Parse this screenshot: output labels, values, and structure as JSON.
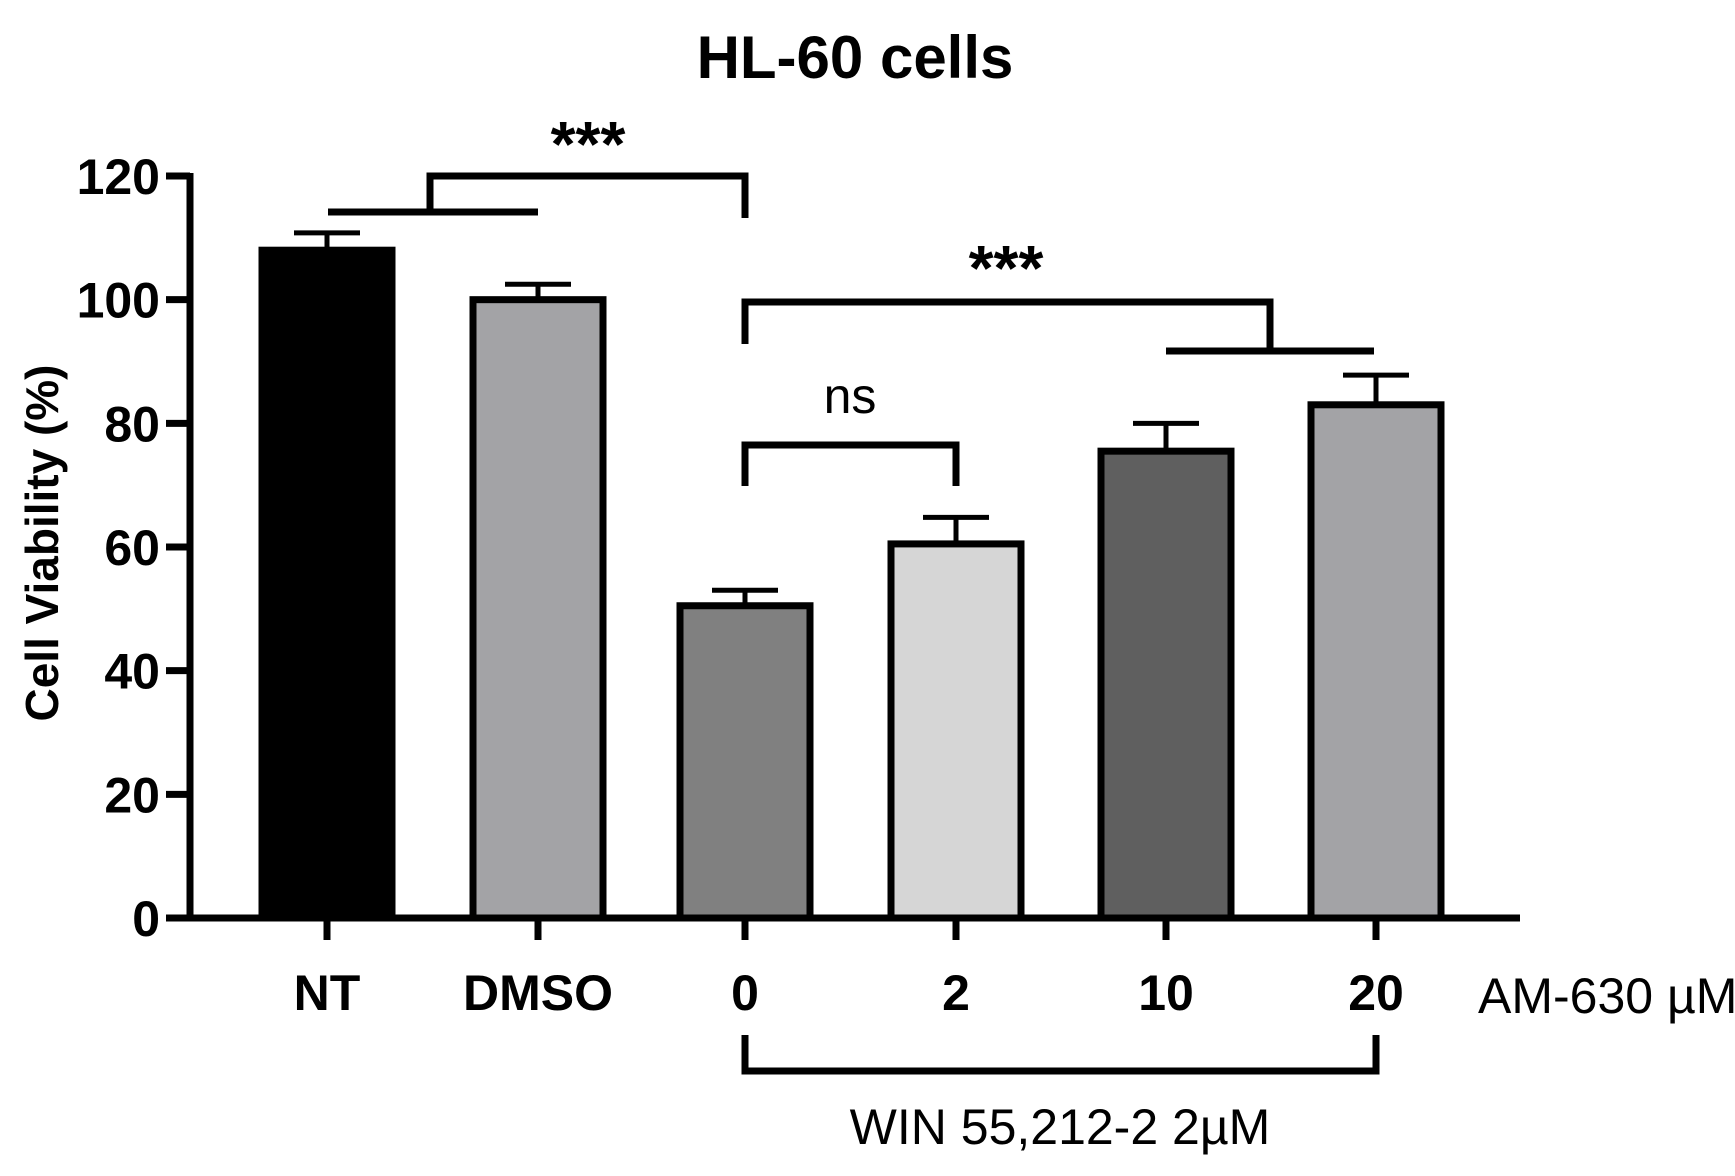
{
  "chart_data": {
    "type": "bar",
    "title": "HL-60 cells",
    "ylabel": "Cell Viability (%)",
    "xlabel": "",
    "ylim": [
      0,
      120
    ],
    "yticks": [
      0,
      20,
      40,
      60,
      80,
      100,
      120
    ],
    "categories": [
      "NT",
      "DMSO",
      "0",
      "2",
      "10",
      "20"
    ],
    "values": [
      108,
      100,
      50.5,
      60.5,
      75.5,
      83
    ],
    "errors": [
      2.8,
      2.5,
      2.5,
      4.3,
      4.5,
      4.8
    ],
    "colors": [
      "#000000",
      "#a3a3a6",
      "#808080",
      "#d6d6d6",
      "#5f5f5f",
      "#a3a3a6"
    ],
    "unit_label": "AM-630 µM",
    "group_label": "WIN 55,212-2 2µM",
    "annotations": {
      "sig_top": "***",
      "sig_right": "***",
      "ns": "ns"
    },
    "grid": false,
    "legend": "none"
  }
}
